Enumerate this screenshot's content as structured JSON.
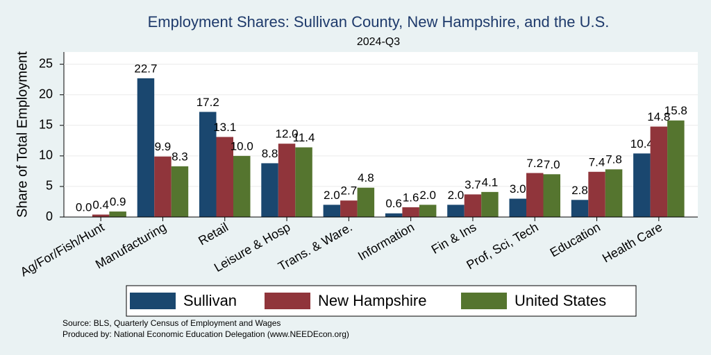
{
  "chart_data": {
    "type": "bar",
    "title": "Employment Shares: Sullivan County, New Hampshire, and the U.S.",
    "subtitle": "2024-Q3",
    "y_label": "Share of Total Employment",
    "categories": [
      "Ag/For/Fish/Hunt",
      "Manufacturing",
      "Retail",
      "Leisure & Hosp",
      "Trans. & Ware.",
      "Information",
      "Fin & Ins",
      "Prof, Sci, Tech",
      "Education",
      "Health Care"
    ],
    "series": [
      {
        "name": "Sullivan",
        "color": "#1a476f",
        "values": [
          0.0,
          22.7,
          17.2,
          8.8,
          2.0,
          0.6,
          2.0,
          3.0,
          2.8,
          10.4
        ],
        "value_labels": [
          "0.0",
          "22.7",
          "17.2",
          "8.8",
          "2.0",
          "0.6",
          "2.0",
          "3.0",
          "2.8",
          "10.4"
        ]
      },
      {
        "name": "New Hampshire",
        "color": "#90353b",
        "values": [
          0.4,
          9.9,
          13.1,
          12.0,
          2.7,
          1.6,
          3.7,
          7.2,
          7.4,
          14.8
        ],
        "value_labels": [
          "0.4",
          "9.9",
          "13.1",
          "12.0",
          "2.7",
          "1.6",
          "3.7",
          "7.2",
          "7.4",
          "14.8"
        ]
      },
      {
        "name": "United States",
        "color": "#55752f",
        "values": [
          0.9,
          8.3,
          10.0,
          11.4,
          4.8,
          2.0,
          4.1,
          7.0,
          7.8,
          15.8
        ],
        "value_labels": [
          "0.9",
          "8.3",
          "10.0",
          "11.4",
          "4.8",
          "2.0",
          "4.1",
          "7.0",
          "7.8",
          "15.8"
        ]
      }
    ],
    "ylim": [
      0,
      27
    ],
    "yticks": [
      0,
      5,
      10,
      15,
      20,
      25
    ],
    "grid": true,
    "legend": "bottom",
    "notes": [
      "Source: BLS, Quarterly Census of Employment and Wages",
      "Produced by: National Economic Education Delegation (www.NEEDEcon.org)"
    ]
  }
}
